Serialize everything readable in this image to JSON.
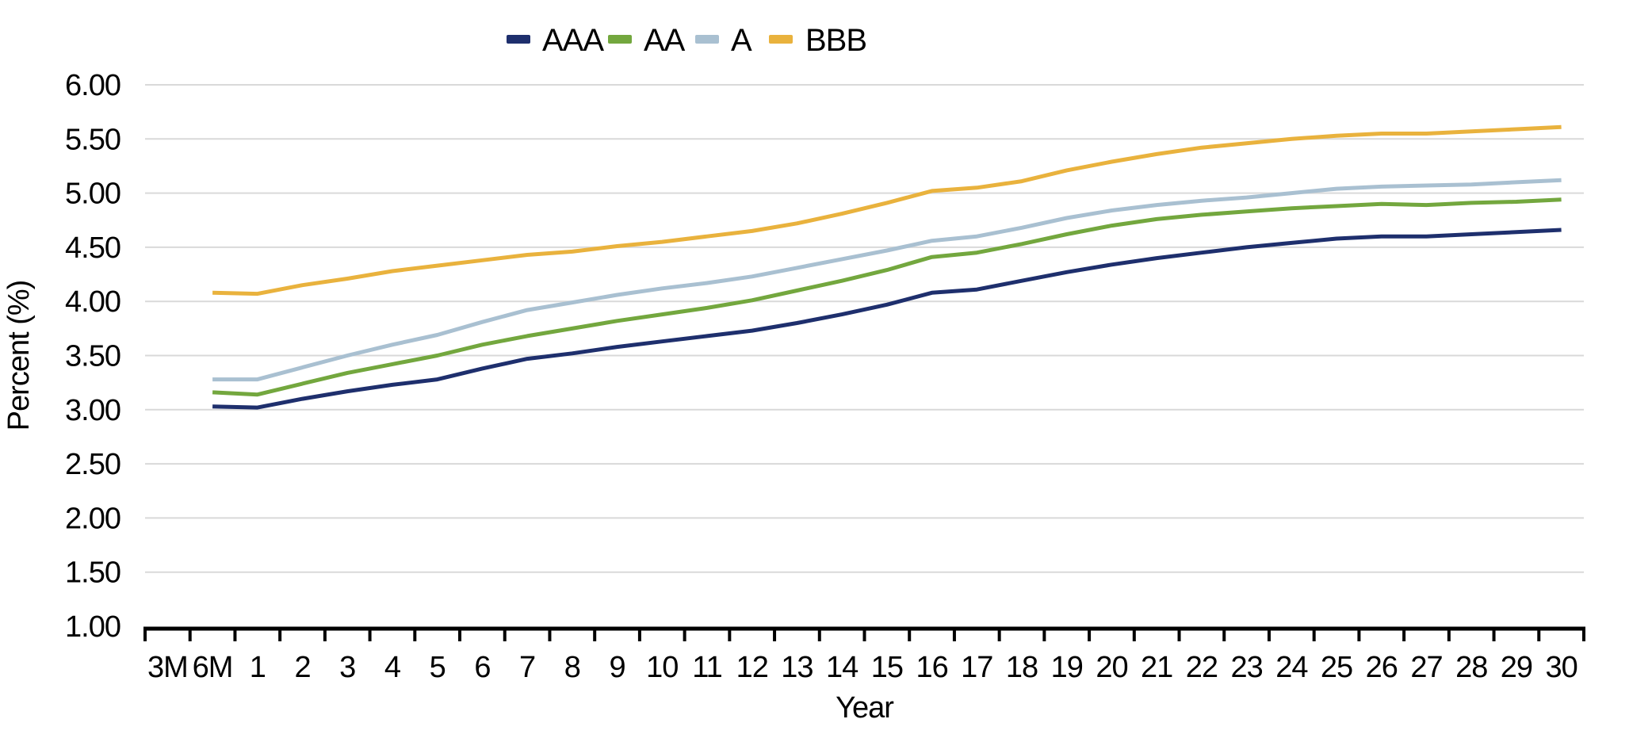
{
  "chart_data": {
    "type": "line",
    "title": "",
    "xlabel": "Year",
    "ylabel": "Percent (%)",
    "ylim": [
      1.0,
      6.0
    ],
    "ytick_step": 0.5,
    "ytick_labels": [
      "1.00",
      "1.50",
      "2.00",
      "2.50",
      "3.00",
      "3.50",
      "4.00",
      "4.50",
      "5.00",
      "5.50",
      "6.00"
    ],
    "grid": "horizontal-only",
    "gridline_color": "#d9d9d9",
    "axis_color": "#000000",
    "legend_position": "top-center",
    "categories": [
      "3M",
      "6M",
      "1",
      "2",
      "3",
      "4",
      "5",
      "6",
      "7",
      "8",
      "9",
      "10",
      "11",
      "12",
      "13",
      "14",
      "15",
      "16",
      "17",
      "18",
      "19",
      "20",
      "21",
      "22",
      "23",
      "24",
      "25",
      "26",
      "27",
      "28",
      "29",
      "30"
    ],
    "series": [
      {
        "name": "AAA",
        "color": "#1e2f6d",
        "values": [
          null,
          3.03,
          3.02,
          3.1,
          3.17,
          3.23,
          3.28,
          3.38,
          3.47,
          3.52,
          3.58,
          3.63,
          3.68,
          3.73,
          3.8,
          3.88,
          3.97,
          4.08,
          4.11,
          4.19,
          4.27,
          4.34,
          4.4,
          4.45,
          4.5,
          4.54,
          4.58,
          4.6,
          4.6,
          4.62,
          4.64,
          4.66
        ]
      },
      {
        "name": "AA",
        "color": "#73a73e",
        "values": [
          null,
          3.16,
          3.14,
          3.24,
          3.34,
          3.42,
          3.5,
          3.6,
          3.68,
          3.75,
          3.82,
          3.88,
          3.94,
          4.01,
          4.1,
          4.19,
          4.29,
          4.41,
          4.45,
          4.53,
          4.62,
          4.7,
          4.76,
          4.8,
          4.83,
          4.86,
          4.88,
          4.9,
          4.89,
          4.91,
          4.92,
          4.94
        ]
      },
      {
        "name": "A",
        "color": "#a9c0d1",
        "values": [
          null,
          3.28,
          3.28,
          3.39,
          3.5,
          3.6,
          3.69,
          3.81,
          3.92,
          3.99,
          4.06,
          4.12,
          4.17,
          4.23,
          4.31,
          4.39,
          4.47,
          4.56,
          4.6,
          4.68,
          4.77,
          4.84,
          4.89,
          4.93,
          4.96,
          5.0,
          5.04,
          5.06,
          5.07,
          5.08,
          5.1,
          5.12
        ]
      },
      {
        "name": "BBB",
        "color": "#e9b23d",
        "values": [
          null,
          4.08,
          4.07,
          4.15,
          4.21,
          4.28,
          4.33,
          4.38,
          4.43,
          4.46,
          4.51,
          4.55,
          4.6,
          4.65,
          4.72,
          4.81,
          4.91,
          5.02,
          5.05,
          5.11,
          5.21,
          5.29,
          5.36,
          5.42,
          5.46,
          5.5,
          5.53,
          5.55,
          5.55,
          5.57,
          5.59,
          5.61
        ]
      }
    ]
  }
}
